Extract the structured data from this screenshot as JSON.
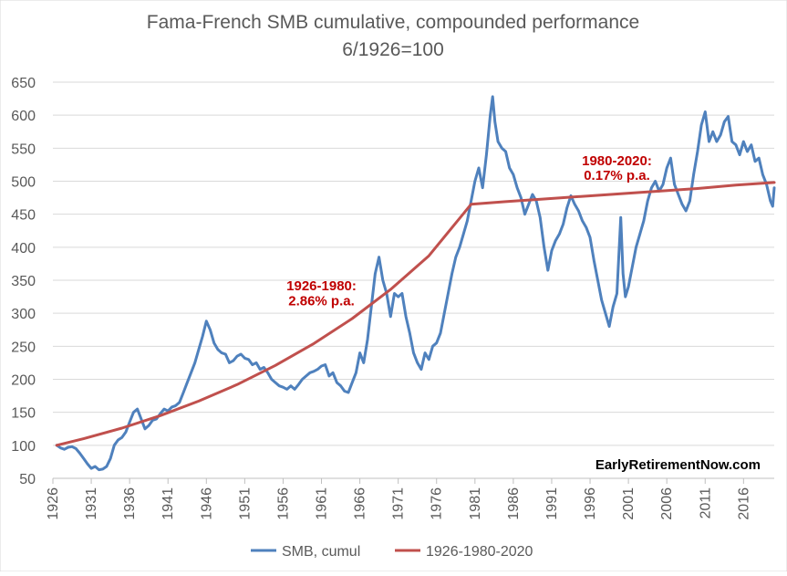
{
  "chart_data": {
    "type": "line",
    "title": "Fama-French SMB cumulative, compounded performance",
    "subtitle": "6/1926=100",
    "xlabel": "",
    "ylabel": "",
    "xlim": [
      1926,
      2020
    ],
    "ylim": [
      50,
      650
    ],
    "yticks": [
      50,
      100,
      150,
      200,
      250,
      300,
      350,
      400,
      450,
      500,
      550,
      600,
      650
    ],
    "xticks": [
      "1926",
      "1931",
      "1936",
      "1941",
      "1946",
      "1951",
      "1956",
      "1961",
      "1966",
      "1971",
      "1976",
      "1981",
      "1986",
      "1991",
      "1996",
      "2001",
      "2006",
      "2011",
      "2016"
    ],
    "grid": "horizontal",
    "legend": "bottom",
    "series": [
      {
        "name": "SMB, cumul",
        "color": "#4f81bd",
        "points": [
          [
            1926.5,
            100
          ],
          [
            1927,
            96
          ],
          [
            1927.5,
            94
          ],
          [
            1928,
            97
          ],
          [
            1928.5,
            98
          ],
          [
            1929,
            95
          ],
          [
            1929.5,
            88
          ],
          [
            1930,
            80
          ],
          [
            1930.5,
            72
          ],
          [
            1931,
            65
          ],
          [
            1931.5,
            68
          ],
          [
            1932,
            63
          ],
          [
            1932.5,
            64
          ],
          [
            1933,
            68
          ],
          [
            1933.5,
            80
          ],
          [
            1934,
            100
          ],
          [
            1934.5,
            108
          ],
          [
            1935,
            112
          ],
          [
            1935.5,
            120
          ],
          [
            1936,
            135
          ],
          [
            1936.5,
            150
          ],
          [
            1937,
            155
          ],
          [
            1937.5,
            140
          ],
          [
            1938,
            125
          ],
          [
            1938.5,
            130
          ],
          [
            1939,
            138
          ],
          [
            1939.5,
            140
          ],
          [
            1940,
            148
          ],
          [
            1940.5,
            155
          ],
          [
            1941,
            152
          ],
          [
            1941.5,
            158
          ],
          [
            1942,
            160
          ],
          [
            1942.5,
            165
          ],
          [
            1943,
            180
          ],
          [
            1943.5,
            195
          ],
          [
            1944,
            210
          ],
          [
            1944.5,
            225
          ],
          [
            1945,
            245
          ],
          [
            1945.5,
            265
          ],
          [
            1946,
            288
          ],
          [
            1946.5,
            275
          ],
          [
            1947,
            255
          ],
          [
            1947.5,
            245
          ],
          [
            1948,
            240
          ],
          [
            1948.5,
            238
          ],
          [
            1949,
            225
          ],
          [
            1949.5,
            228
          ],
          [
            1950,
            235
          ],
          [
            1950.5,
            238
          ],
          [
            1951,
            232
          ],
          [
            1951.5,
            230
          ],
          [
            1952,
            222
          ],
          [
            1952.5,
            225
          ],
          [
            1953,
            215
          ],
          [
            1953.5,
            218
          ],
          [
            1954,
            210
          ],
          [
            1954.5,
            200
          ],
          [
            1955,
            195
          ],
          [
            1955.5,
            190
          ],
          [
            1956,
            188
          ],
          [
            1956.5,
            185
          ],
          [
            1957,
            190
          ],
          [
            1957.5,
            185
          ],
          [
            1958,
            192
          ],
          [
            1958.5,
            200
          ],
          [
            1959,
            205
          ],
          [
            1959.5,
            210
          ],
          [
            1960,
            212
          ],
          [
            1960.5,
            215
          ],
          [
            1961,
            220
          ],
          [
            1961.5,
            222
          ],
          [
            1962,
            205
          ],
          [
            1962.5,
            210
          ],
          [
            1963,
            195
          ],
          [
            1963.5,
            190
          ],
          [
            1964,
            182
          ],
          [
            1964.5,
            180
          ],
          [
            1965,
            195
          ],
          [
            1965.5,
            210
          ],
          [
            1966,
            240
          ],
          [
            1966.5,
            225
          ],
          [
            1967,
            260
          ],
          [
            1967.5,
            310
          ],
          [
            1968,
            360
          ],
          [
            1968.5,
            385
          ],
          [
            1969,
            350
          ],
          [
            1969.5,
            330
          ],
          [
            1970,
            295
          ],
          [
            1970.5,
            330
          ],
          [
            1971,
            325
          ],
          [
            1971.5,
            330
          ],
          [
            1972,
            295
          ],
          [
            1972.5,
            270
          ],
          [
            1973,
            240
          ],
          [
            1973.5,
            225
          ],
          [
            1974,
            215
          ],
          [
            1974.5,
            240
          ],
          [
            1975,
            230
          ],
          [
            1975.5,
            250
          ],
          [
            1976,
            255
          ],
          [
            1976.5,
            270
          ],
          [
            1977,
            300
          ],
          [
            1977.5,
            330
          ],
          [
            1978,
            360
          ],
          [
            1978.5,
            385
          ],
          [
            1979,
            400
          ],
          [
            1979.5,
            420
          ],
          [
            1980,
            440
          ],
          [
            1980.5,
            470
          ],
          [
            1981,
            500
          ],
          [
            1981.5,
            520
          ],
          [
            1982,
            490
          ],
          [
            1982.5,
            540
          ],
          [
            1983,
            600
          ],
          [
            1983.3,
            628
          ],
          [
            1983.6,
            590
          ],
          [
            1984,
            560
          ],
          [
            1984.5,
            550
          ],
          [
            1985,
            545
          ],
          [
            1985.5,
            520
          ],
          [
            1986,
            510
          ],
          [
            1986.5,
            490
          ],
          [
            1987,
            475
          ],
          [
            1987.5,
            450
          ],
          [
            1988,
            465
          ],
          [
            1988.5,
            480
          ],
          [
            1989,
            470
          ],
          [
            1989.5,
            445
          ],
          [
            1990,
            400
          ],
          [
            1990.5,
            365
          ],
          [
            1991,
            395
          ],
          [
            1991.5,
            410
          ],
          [
            1992,
            420
          ],
          [
            1992.5,
            435
          ],
          [
            1993,
            460
          ],
          [
            1993.5,
            478
          ],
          [
            1994,
            465
          ],
          [
            1994.5,
            455
          ],
          [
            1995,
            440
          ],
          [
            1995.5,
            430
          ],
          [
            1996,
            415
          ],
          [
            1996.5,
            380
          ],
          [
            1997,
            350
          ],
          [
            1997.5,
            320
          ],
          [
            1998,
            300
          ],
          [
            1998.5,
            280
          ],
          [
            1999,
            310
          ],
          [
            1999.5,
            330
          ],
          [
            2000,
            445
          ],
          [
            2000.3,
            360
          ],
          [
            2000.6,
            325
          ],
          [
            2001,
            340
          ],
          [
            2001.5,
            370
          ],
          [
            2002,
            400
          ],
          [
            2002.5,
            420
          ],
          [
            2003,
            440
          ],
          [
            2003.5,
            470
          ],
          [
            2004,
            490
          ],
          [
            2004.5,
            500
          ],
          [
            2005,
            485
          ],
          [
            2005.5,
            495
          ],
          [
            2006,
            520
          ],
          [
            2006.5,
            535
          ],
          [
            2007,
            495
          ],
          [
            2007.5,
            480
          ],
          [
            2008,
            465
          ],
          [
            2008.5,
            455
          ],
          [
            2009,
            470
          ],
          [
            2009.5,
            510
          ],
          [
            2010,
            545
          ],
          [
            2010.5,
            585
          ],
          [
            2011,
            605
          ],
          [
            2011.5,
            560
          ],
          [
            2012,
            575
          ],
          [
            2012.5,
            560
          ],
          [
            2013,
            570
          ],
          [
            2013.5,
            590
          ],
          [
            2014,
            598
          ],
          [
            2014.5,
            560
          ],
          [
            2015,
            555
          ],
          [
            2015.5,
            540
          ],
          [
            2016,
            560
          ],
          [
            2016.5,
            545
          ],
          [
            2017,
            555
          ],
          [
            2017.5,
            530
          ],
          [
            2018,
            535
          ],
          [
            2018.5,
            510
          ],
          [
            2019,
            495
          ],
          [
            2019.5,
            470
          ],
          [
            2019.8,
            462
          ],
          [
            2020,
            490
          ]
        ]
      },
      {
        "name": "1926-1980-2020",
        "color": "#c0504d",
        "points": [
          [
            1926.5,
            100
          ],
          [
            1930,
            110
          ],
          [
            1935,
            126
          ],
          [
            1940,
            145
          ],
          [
            1945,
            167
          ],
          [
            1950,
            192
          ],
          [
            1955,
            221
          ],
          [
            1960,
            254
          ],
          [
            1965,
            292
          ],
          [
            1970,
            336
          ],
          [
            1975,
            387
          ],
          [
            1980.5,
            465
          ],
          [
            1985,
            469
          ],
          [
            1990,
            473
          ],
          [
            1995,
            477
          ],
          [
            2000,
            481
          ],
          [
            2005,
            485
          ],
          [
            2010,
            489
          ],
          [
            2015,
            494
          ],
          [
            2020,
            498
          ]
        ]
      }
    ],
    "annotations": [
      {
        "text": "1926-1980:",
        "x": 1961,
        "y": 335
      },
      {
        "text": "2.86% p.a.",
        "x": 1961,
        "y": 312
      },
      {
        "text": "1980-2020:",
        "x": 1999.5,
        "y": 524
      },
      {
        "text": "0.17% p.a.",
        "x": 1999.5,
        "y": 502
      }
    ],
    "watermark": "EarlyRetirementNow.com"
  }
}
